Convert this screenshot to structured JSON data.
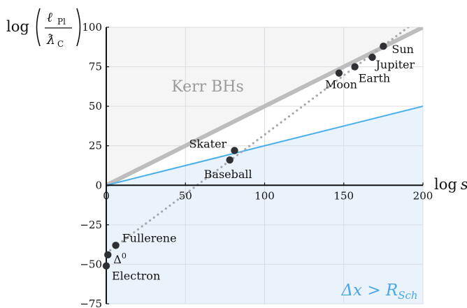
{
  "chart_data": {
    "type": "scatter",
    "xlabel": "log s",
    "ylabel": "log(ℓPl/ƛC)",
    "xlim": [
      0,
      200
    ],
    "ylim": [
      -75,
      100
    ],
    "x_ticks": [
      0,
      50,
      100,
      150,
      200
    ],
    "y_ticks": [
      -75,
      -50,
      -25,
      0,
      25,
      50,
      75,
      100
    ],
    "x_tick_labels": [
      "0",
      "50",
      "100",
      "150",
      "200"
    ],
    "y_tick_labels": [
      "−75",
      "−50",
      "−25",
      "0",
      "25",
      "50",
      "75",
      "100"
    ],
    "grid": true,
    "regions": [
      {
        "label": "Kerr BHs",
        "description": "above line y = x/2",
        "fill": "#f5f5f5",
        "text_color": "#9a9a9a"
      },
      {
        "label": "Δx > RSch",
        "description": "below line y = x/4",
        "fill": "#eaf3fc",
        "text_color": "#4aa8e8"
      }
    ],
    "lines": [
      {
        "kind": "thick-gray",
        "slope": 0.5,
        "intercept": 0,
        "color": "#bdbdbd"
      },
      {
        "kind": "blue",
        "slope": 0.25,
        "intercept": 0,
        "color": "#4ab0ec"
      },
      {
        "kind": "dotted-gray",
        "slope": 0.75,
        "intercept": -43,
        "color": "#a8a8a8"
      }
    ],
    "points": [
      {
        "name": "Electron",
        "x": 0,
        "y": -51
      },
      {
        "name": "Δ0",
        "x": 1,
        "y": -44
      },
      {
        "name": "Fullerene",
        "x": 6,
        "y": -38
      },
      {
        "name": "Baseball",
        "x": 78,
        "y": 16
      },
      {
        "name": "Skater",
        "x": 81,
        "y": 22
      },
      {
        "name": "Moon",
        "x": 147,
        "y": 71
      },
      {
        "name": "Earth",
        "x": 157,
        "y": 75
      },
      {
        "name": "Jupiter",
        "x": 168,
        "y": 81
      },
      {
        "name": "Sun",
        "x": 175,
        "y": 88
      }
    ],
    "point_color": "#2e3033"
  }
}
